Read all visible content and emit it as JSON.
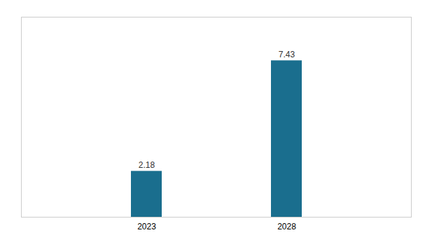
{
  "chart_data": {
    "type": "bar",
    "categories": [
      "2023",
      "2028"
    ],
    "values": [
      2.18,
      7.43
    ],
    "color": "#1a6e8e",
    "ylim": [
      0,
      9.5
    ],
    "yticks": [],
    "grid": false,
    "data_labels": true,
    "tick_labels": "x"
  }
}
